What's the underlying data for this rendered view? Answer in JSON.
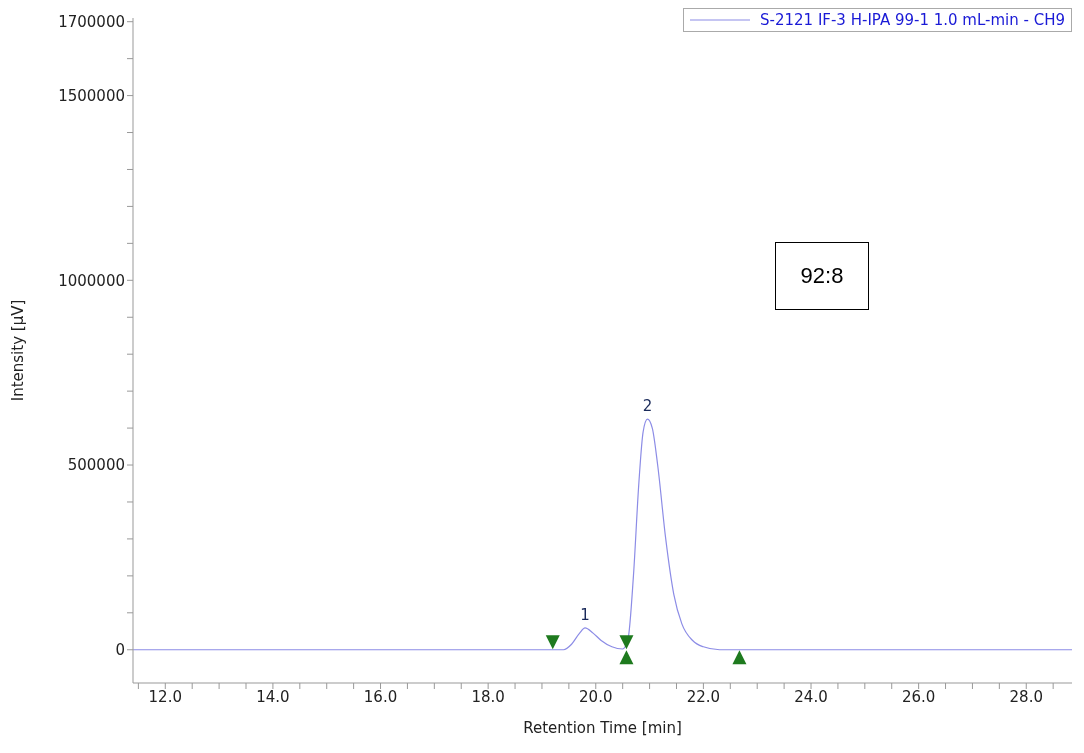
{
  "chart_data": {
    "type": "line",
    "xlabel": "Retention Time [min]",
    "ylabel": "Intensity [µV]",
    "xlim": [
      11.4,
      28.85
    ],
    "ylim": [
      -90000,
      1710000
    ],
    "xticks": [
      {
        "value": 11.5,
        "label": null
      },
      {
        "value": 12,
        "label": "12.0"
      },
      {
        "value": 12.5,
        "label": null
      },
      {
        "value": 13,
        "label": null
      },
      {
        "value": 13.5,
        "label": null
      },
      {
        "value": 14,
        "label": "14.0"
      },
      {
        "value": 14.5,
        "label": null
      },
      {
        "value": 15,
        "label": null
      },
      {
        "value": 15.5,
        "label": null
      },
      {
        "value": 16,
        "label": "16.0"
      },
      {
        "value": 16.5,
        "label": null
      },
      {
        "value": 17,
        "label": null
      },
      {
        "value": 17.5,
        "label": null
      },
      {
        "value": 18,
        "label": "18.0"
      },
      {
        "value": 18.5,
        "label": null
      },
      {
        "value": 19,
        "label": null
      },
      {
        "value": 19.5,
        "label": null
      },
      {
        "value": 20,
        "label": "20.0"
      },
      {
        "value": 20.5,
        "label": null
      },
      {
        "value": 21,
        "label": null
      },
      {
        "value": 21.5,
        "label": null
      },
      {
        "value": 22,
        "label": "22.0"
      },
      {
        "value": 22.5,
        "label": null
      },
      {
        "value": 23,
        "label": null
      },
      {
        "value": 23.5,
        "label": null
      },
      {
        "value": 24,
        "label": "24.0"
      },
      {
        "value": 24.5,
        "label": null
      },
      {
        "value": 25,
        "label": null
      },
      {
        "value": 25.5,
        "label": null
      },
      {
        "value": 26,
        "label": "26.0"
      },
      {
        "value": 26.5,
        "label": null
      },
      {
        "value": 27,
        "label": null
      },
      {
        "value": 27.5,
        "label": null
      },
      {
        "value": 28,
        "label": "28.0"
      },
      {
        "value": 28.5,
        "label": null
      }
    ],
    "yticks": [
      0,
      {
        "value": 100000,
        "label": null
      },
      {
        "value": 200000,
        "label": null
      },
      {
        "value": 300000,
        "label": null
      },
      {
        "value": 400000,
        "label": null
      },
      500000,
      {
        "value": 600000,
        "label": null
      },
      {
        "value": 700000,
        "label": null
      },
      {
        "value": 800000,
        "label": null
      },
      {
        "value": 900000,
        "label": null
      },
      1000000,
      {
        "value": 1100000,
        "label": null
      },
      {
        "value": 1200000,
        "label": null
      },
      {
        "value": 1300000,
        "label": null
      },
      {
        "value": 1400000,
        "label": null
      },
      1500000,
      {
        "value": 1600000,
        "label": null
      },
      1700000
    ],
    "grid": false,
    "legend": "top right",
    "marker": "none",
    "series": [
      {
        "name": "S-2121 IF-3 H-IPA 99-1 1.0 mL-min - CH9",
        "color": "#8c8ce6",
        "x": [
          11.4,
          19.2,
          19.4,
          19.55,
          19.7,
          19.8,
          19.95,
          20.1,
          20.3,
          20.5,
          20.6,
          20.7,
          20.8,
          20.88,
          20.96,
          21.05,
          21.15,
          21.3,
          21.45,
          21.6,
          21.8,
          22.0,
          22.3,
          28.85
        ],
        "values": [
          0,
          0,
          0,
          15000,
          45000,
          59000,
          45000,
          25000,
          8000,
          2000,
          30000,
          200000,
          450000,
          590000,
          624000,
          600000,
          500000,
          300000,
          150000,
          70000,
          25000,
          8000,
          0,
          0
        ]
      },
      {
        "color": "#1e7a1e",
        "type": "scatter",
        "marker": "triangle",
        "x": [
          19.2,
          20.57,
          20.57,
          22.67
        ],
        "values": [
          20000,
          20000,
          -20000,
          -20000
        ]
      }
    ],
    "annotations": [
      {
        "text": "1",
        "x": 19.8,
        "y": 59000
      },
      {
        "text": "2",
        "x": 20.96,
        "y": 624000
      },
      "92:8"
    ]
  }
}
